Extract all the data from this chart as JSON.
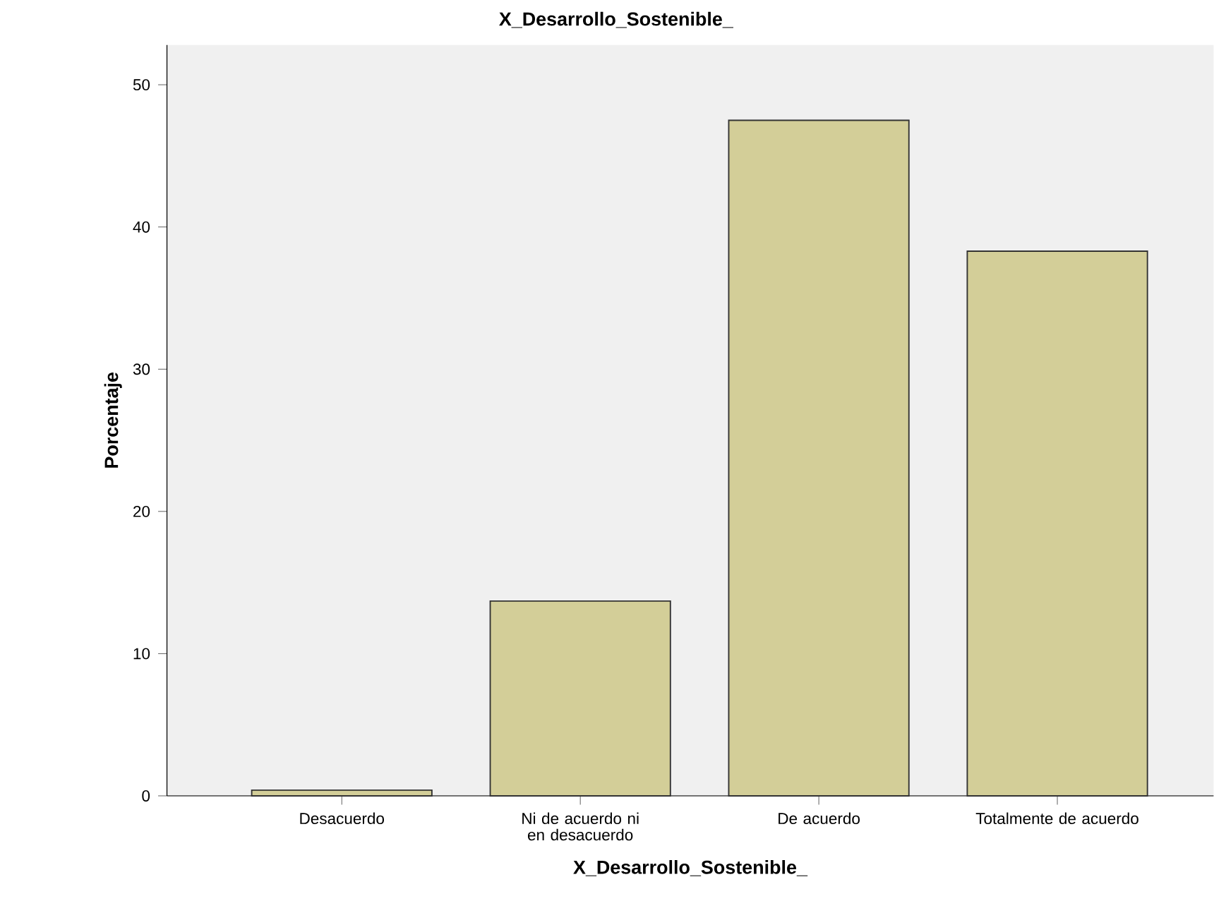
{
  "chart_data": {
    "type": "bar",
    "title": "X_Desarrollo_Sostenible_",
    "xlabel": "X_Desarrollo_Sostenible_",
    "ylabel": "Porcentaje",
    "categories": [
      "Desacuerdo",
      "Ni de acuerdo ni en desacuerdo",
      "De acuerdo",
      "Totalmente de acuerdo"
    ],
    "values": [
      0.4,
      13.7,
      47.5,
      38.3
    ],
    "color": "#d3ce98",
    "ylim": [
      0,
      52.8
    ],
    "yticks": [
      0,
      10,
      20,
      30,
      40,
      50
    ],
    "grid": false
  }
}
